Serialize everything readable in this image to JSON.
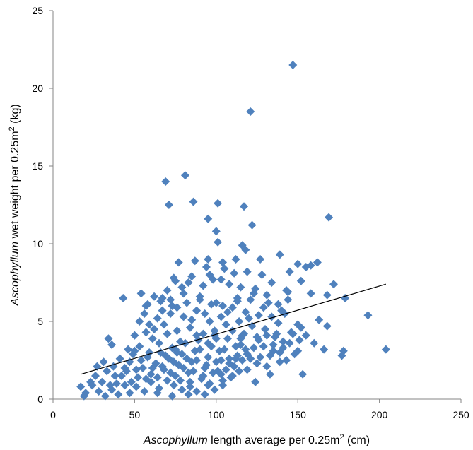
{
  "chart_data": {
    "type": "scatter",
    "title": "",
    "xlabel": {
      "species": "Ascophyllum",
      "text": " length average per 0.25m",
      "sup": "2",
      "unit": " (cm)"
    },
    "ylabel": {
      "species": "Ascophyllum",
      "text": " wet weight per 0.25m",
      "sup": "2",
      "unit": " (kg)"
    },
    "xlim": [
      0,
      250
    ],
    "ylim": [
      0,
      25
    ],
    "xticks": [
      0,
      50,
      100,
      150,
      200,
      250
    ],
    "yticks": [
      0,
      5,
      10,
      15,
      20,
      25
    ],
    "grid": false,
    "legend": "none",
    "marker": "diamond",
    "marker_color": "#4F81BD",
    "trendline": {
      "type": "linear",
      "x": [
        17,
        204
      ],
      "y": [
        1.6,
        7.4
      ],
      "color": "#000000"
    },
    "points": [
      [
        147,
        21.5
      ],
      [
        121,
        18.5
      ],
      [
        81,
        14.4
      ],
      [
        69,
        14.0
      ],
      [
        86,
        12.7
      ],
      [
        71,
        12.5
      ],
      [
        101,
        12.6
      ],
      [
        117,
        12.4
      ],
      [
        169,
        11.7
      ],
      [
        122,
        11.2
      ],
      [
        95,
        11.6
      ],
      [
        100,
        10.8
      ],
      [
        101,
        10.1
      ],
      [
        116,
        9.9
      ],
      [
        118,
        9.6
      ],
      [
        139,
        9.3
      ],
      [
        127,
        9.0
      ],
      [
        150,
        8.7
      ],
      [
        162,
        8.8
      ],
      [
        155,
        8.5
      ],
      [
        158,
        8.6
      ],
      [
        77,
        8.8
      ],
      [
        87,
        8.9
      ],
      [
        95,
        9.0
      ],
      [
        112,
        9.0
      ],
      [
        145,
        8.2
      ],
      [
        128,
        8.0
      ],
      [
        74,
        7.8
      ],
      [
        83,
        7.5
      ],
      [
        96,
        8.0
      ],
      [
        103,
        7.7
      ],
      [
        108,
        7.4
      ],
      [
        134,
        7.5
      ],
      [
        152,
        7.6
      ],
      [
        143,
        7.0
      ],
      [
        158,
        6.8
      ],
      [
        172,
        7.4
      ],
      [
        179,
        6.5
      ],
      [
        168,
        6.7
      ],
      [
        54,
        6.8
      ],
      [
        62,
        6.6
      ],
      [
        43,
        6.5
      ],
      [
        58,
        6.1
      ],
      [
        67,
        6.5
      ],
      [
        72,
        6.4
      ],
      [
        80,
        6.8
      ],
      [
        90,
        6.6
      ],
      [
        100,
        6.2
      ],
      [
        113,
        6.5
      ],
      [
        121,
        6.4
      ],
      [
        131,
        6.7
      ],
      [
        138,
        6.1
      ],
      [
        144,
        6.4
      ],
      [
        163,
        5.1
      ],
      [
        168,
        4.7
      ],
      [
        193,
        5.4
      ],
      [
        204,
        3.2
      ],
      [
        178,
        3.1
      ],
      [
        177,
        2.8
      ],
      [
        160,
        3.6
      ],
      [
        166,
        3.2
      ],
      [
        152,
        4.6
      ],
      [
        147,
        4.2
      ],
      [
        150,
        3.1
      ],
      [
        153,
        1.6
      ],
      [
        141,
        3.3
      ],
      [
        139,
        2.4
      ],
      [
        131,
        2.1
      ],
      [
        133,
        1.6
      ],
      [
        125,
        2.3
      ],
      [
        119,
        2.9
      ],
      [
        112,
        2.6
      ],
      [
        108,
        2.3
      ],
      [
        103,
        1.6
      ],
      [
        99,
        0.6
      ],
      [
        95,
        0.9
      ],
      [
        88,
        0.5
      ],
      [
        83,
        0.3
      ],
      [
        79,
        0.6
      ],
      [
        74,
        0.9
      ],
      [
        70,
        1.2
      ],
      [
        65,
        0.7
      ],
      [
        60,
        1.1
      ],
      [
        56,
        0.5
      ],
      [
        51,
        0.8
      ],
      [
        47,
        0.4
      ],
      [
        44,
        0.9
      ],
      [
        40,
        0.3
      ],
      [
        36,
        0.6
      ],
      [
        32,
        0.2
      ],
      [
        28,
        0.5
      ],
      [
        24,
        0.9
      ],
      [
        20,
        0.4
      ],
      [
        17,
        0.8
      ],
      [
        19,
        0.2
      ],
      [
        23,
        1.1
      ],
      [
        27,
        2.1
      ],
      [
        31,
        2.4
      ],
      [
        34,
        3.9
      ],
      [
        36,
        3.5
      ],
      [
        38,
        1.5
      ],
      [
        41,
        2.6
      ],
      [
        45,
        1.8
      ],
      [
        49,
        2.9
      ],
      [
        53,
        3.4
      ],
      [
        57,
        4.3
      ],
      [
        61,
        3.9
      ],
      [
        64,
        5.2
      ],
      [
        68,
        4.8
      ],
      [
        72,
        5.5
      ],
      [
        76,
        5.9
      ],
      [
        80,
        5.3
      ],
      [
        84,
        4.6
      ],
      [
        88,
        5.7
      ],
      [
        92,
        4.2
      ],
      [
        96,
        5.0
      ],
      [
        99,
        4.4
      ],
      [
        103,
        5.3
      ],
      [
        106,
        4.8
      ],
      [
        110,
        5.9
      ],
      [
        114,
        5.0
      ],
      [
        118,
        5.6
      ],
      [
        122,
        4.7
      ],
      [
        126,
        5.4
      ],
      [
        130,
        4.5
      ],
      [
        134,
        5.3
      ],
      [
        138,
        4.9
      ],
      [
        142,
        5.5
      ],
      [
        146,
        4.3
      ],
      [
        150,
        4.8
      ],
      [
        44,
        2.0
      ],
      [
        47,
        2.4
      ],
      [
        50,
        3.1
      ],
      [
        52,
        1.4
      ],
      [
        55,
        2.0
      ],
      [
        58,
        2.7
      ],
      [
        60,
        1.6
      ],
      [
        63,
        2.3
      ],
      [
        66,
        3.0
      ],
      [
        68,
        1.9
      ],
      [
        71,
        2.6
      ],
      [
        73,
        3.3
      ],
      [
        75,
        1.5
      ],
      [
        77,
        2.2
      ],
      [
        79,
        2.9
      ],
      [
        81,
        3.6
      ],
      [
        83,
        1.7
      ],
      [
        85,
        2.4
      ],
      [
        87,
        3.1
      ],
      [
        89,
        3.8
      ],
      [
        91,
        1.3
      ],
      [
        93,
        2.0
      ],
      [
        95,
        2.7
      ],
      [
        97,
        3.4
      ],
      [
        99,
        4.1
      ],
      [
        101,
        1.8
      ],
      [
        103,
        2.5
      ],
      [
        105,
        3.2
      ],
      [
        107,
        3.9
      ],
      [
        109,
        1.4
      ],
      [
        111,
        2.1
      ],
      [
        113,
        2.8
      ],
      [
        115,
        3.5
      ],
      [
        117,
        4.2
      ],
      [
        119,
        1.9
      ],
      [
        121,
        2.6
      ],
      [
        123,
        3.3
      ],
      [
        125,
        4.0
      ],
      [
        127,
        2.7
      ],
      [
        129,
        3.4
      ],
      [
        131,
        4.1
      ],
      [
        133,
        2.8
      ],
      [
        135,
        3.5
      ],
      [
        137,
        4.2
      ],
      [
        139,
        3.0
      ],
      [
        141,
        3.7
      ],
      [
        143,
        2.5
      ],
      [
        145,
        3.6
      ],
      [
        148,
        2.9
      ],
      [
        151,
        3.8
      ],
      [
        62,
        4.5
      ],
      [
        65,
        3.6
      ],
      [
        67,
        5.7
      ],
      [
        70,
        4.2
      ],
      [
        73,
        6.0
      ],
      [
        76,
        4.4
      ],
      [
        78,
        3.7
      ],
      [
        82,
        6.2
      ],
      [
        85,
        5.1
      ],
      [
        88,
        4.1
      ],
      [
        90,
        6.4
      ],
      [
        93,
        5.5
      ],
      [
        97,
        6.1
      ],
      [
        100,
        3.9
      ],
      [
        104,
        6.0
      ],
      [
        107,
        5.6
      ],
      [
        110,
        4.4
      ],
      [
        113,
        6.3
      ],
      [
        116,
        4.1
      ],
      [
        120,
        5.2
      ],
      [
        123,
        6.8
      ],
      [
        126,
        3.8
      ],
      [
        129,
        5.9
      ],
      [
        132,
        6.2
      ],
      [
        136,
        4.0
      ],
      [
        140,
        5.7
      ],
      [
        144,
        6.9
      ],
      [
        48,
        1.1
      ],
      [
        51,
        1.9
      ],
      [
        54,
        2.5
      ],
      [
        57,
        1.3
      ],
      [
        59,
        3.0
      ],
      [
        61,
        2.0
      ],
      [
        64,
        1.4
      ],
      [
        67,
        2.1
      ],
      [
        69,
        2.8
      ],
      [
        72,
        1.7
      ],
      [
        74,
        2.4
      ],
      [
        76,
        3.0
      ],
      [
        78,
        1.2
      ],
      [
        80,
        2.0
      ],
      [
        82,
        2.6
      ],
      [
        84,
        1.1
      ],
      [
        86,
        1.8
      ],
      [
        88,
        2.5
      ],
      [
        90,
        3.2
      ],
      [
        92,
        1.5
      ],
      [
        94,
        2.2
      ],
      [
        96,
        1.0
      ],
      [
        98,
        1.7
      ],
      [
        100,
        2.4
      ],
      [
        102,
        3.1
      ],
      [
        104,
        1.2
      ],
      [
        106,
        1.9
      ],
      [
        108,
        2.6
      ],
      [
        110,
        1.5
      ],
      [
        112,
        3.4
      ],
      [
        114,
        1.8
      ],
      [
        116,
        2.5
      ],
      [
        118,
        3.2
      ],
      [
        39,
        1.0
      ],
      [
        42,
        1.5
      ],
      [
        30,
        1.1
      ],
      [
        26,
        1.5
      ],
      [
        33,
        1.8
      ],
      [
        35,
        0.9
      ],
      [
        37,
        2.1
      ],
      [
        46,
        3.2
      ],
      [
        50,
        4.1
      ],
      [
        53,
        5.0
      ],
      [
        56,
        5.5
      ],
      [
        59,
        4.8
      ],
      [
        70,
        7.0
      ],
      [
        75,
        7.6
      ],
      [
        79,
        7.2
      ],
      [
        85,
        7.9
      ],
      [
        92,
        7.3
      ],
      [
        98,
        7.7
      ],
      [
        105,
        8.4
      ],
      [
        111,
        8.1
      ],
      [
        115,
        7.2
      ],
      [
        119,
        8.2
      ],
      [
        124,
        7.1
      ],
      [
        57,
        6.0
      ],
      [
        66,
        6.3
      ],
      [
        94,
        8.5
      ],
      [
        104,
        8.8
      ],
      [
        75,
        3.2
      ],
      [
        95,
        3.6
      ],
      [
        115,
        3.9
      ],
      [
        135,
        3.1
      ],
      [
        155,
        4.1
      ],
      [
        64,
        0.4
      ],
      [
        84,
        0.8
      ],
      [
        104,
        0.9
      ],
      [
        124,
        1.1
      ],
      [
        93,
        0.3
      ],
      [
        73,
        0.2
      ]
    ]
  }
}
